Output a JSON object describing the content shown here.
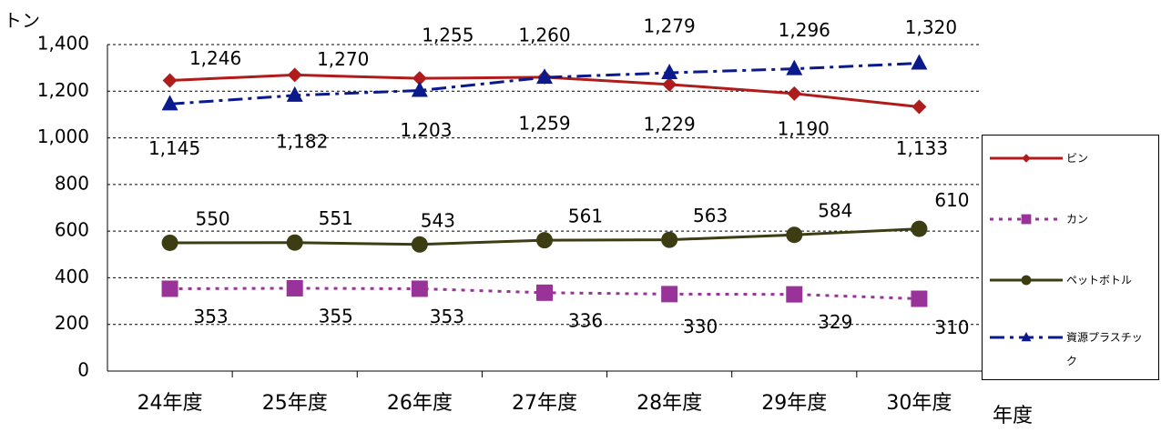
{
  "chart_data": {
    "type": "line",
    "y_label": "トン",
    "x_label": "年度",
    "categories": [
      "24年度",
      "25年度",
      "26年度",
      "27年度",
      "28年度",
      "29年度",
      "30年度"
    ],
    "series": [
      {
        "name": "ビン",
        "color": "#b01c1c",
        "marker": "diamond",
        "dash": "solid",
        "values": [
          1246,
          1270,
          1255,
          1260,
          1229,
          1190,
          1133
        ],
        "value_labels": [
          "1,246",
          "1,270",
          "1,255",
          "1,260",
          "1,229",
          "1,190",
          "1,133"
        ]
      },
      {
        "name": "カン",
        "color": "#993399",
        "marker": "square",
        "dash": "dotted",
        "values": [
          353,
          355,
          353,
          336,
          330,
          329,
          310
        ],
        "value_labels": [
          "353",
          "355",
          "353",
          "336",
          "330",
          "329",
          "310"
        ]
      },
      {
        "name": "ペットボトル",
        "color": "#3d3d14",
        "marker": "circle",
        "dash": "solid",
        "values": [
          550,
          551,
          543,
          561,
          563,
          584,
          610
        ],
        "value_labels": [
          "550",
          "551",
          "543",
          "561",
          "563",
          "584",
          "610"
        ]
      },
      {
        "name": "資源プラスチック",
        "color": "#0a1a8c",
        "marker": "triangle",
        "dash": "dashdot",
        "values": [
          1145,
          1182,
          1203,
          1259,
          1279,
          1296,
          1320
        ],
        "value_labels": [
          "1,145",
          "1,182",
          "1,203",
          "1,259",
          "1,279",
          "1,296",
          "1,320"
        ]
      }
    ],
    "ylim": [
      0,
      1400
    ],
    "yticks": [
      0,
      200,
      400,
      600,
      800,
      {
        "value": 1000,
        "label": "1,000"
      },
      {
        "value": 1200,
        "label": "1,200"
      },
      {
        "value": 1400,
        "label": "1,400"
      }
    ],
    "grid": true,
    "legend": "right"
  }
}
